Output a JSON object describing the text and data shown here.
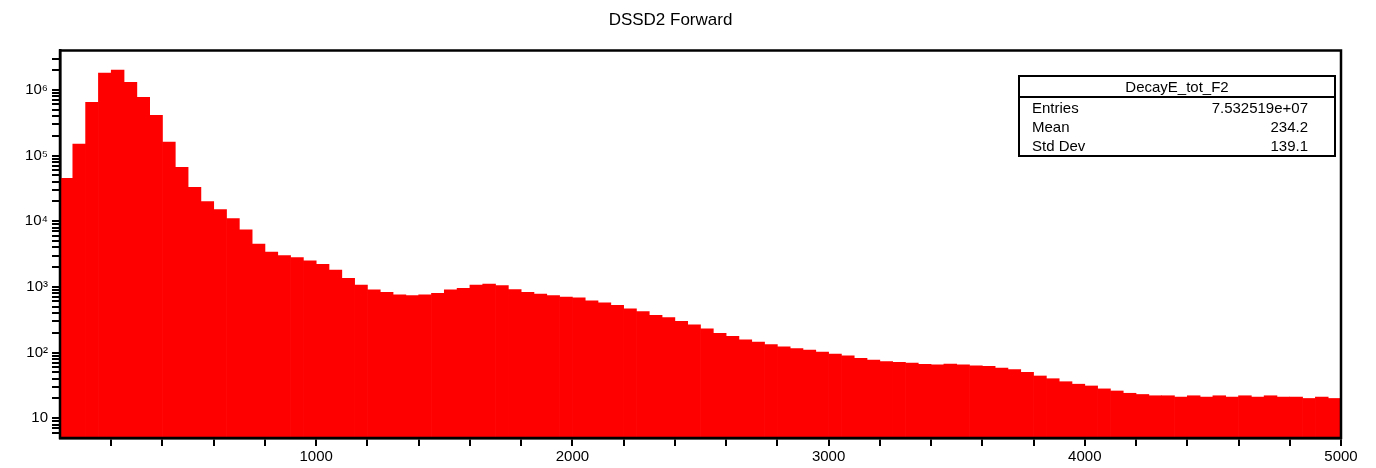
{
  "chart_data": {
    "type": "histogram",
    "title": "DSSD2 Forward",
    "bins": [
      0,
      50,
      100,
      150,
      200,
      250,
      300,
      350,
      400,
      450,
      500,
      550,
      600,
      650,
      700,
      750,
      800,
      850,
      900,
      950,
      1000,
      1050,
      1100,
      1150,
      1200,
      1250,
      1300,
      1350,
      1400,
      1450,
      1500,
      1550,
      1600,
      1650,
      1700,
      1750,
      1800,
      1850,
      1900,
      1950,
      2000,
      2050,
      2100,
      2150,
      2200,
      2250,
      2300,
      2350,
      2400,
      2450,
      2500,
      2550,
      2600,
      2650,
      2700,
      2750,
      2800,
      2850,
      2900,
      2950,
      3000,
      3050,
      3100,
      3150,
      3200,
      3250,
      3300,
      3350,
      3400,
      3450,
      3500,
      3550,
      3600,
      3650,
      3700,
      3750,
      3800,
      3850,
      3900,
      3950,
      4000,
      4050,
      4100,
      4150,
      4200,
      4250,
      4300,
      4350,
      4400,
      4450,
      4500,
      4550,
      4600,
      4650,
      4700,
      4750,
      4800,
      4850,
      4900,
      4950,
      5000
    ],
    "values": [
      45000,
      150000,
      650000,
      1800000,
      2000000,
      1300000,
      770000,
      410000,
      160000,
      66000,
      33000,
      20000,
      15000,
      11000,
      7400,
      4500,
      3400,
      3000,
      2800,
      2500,
      2200,
      1800,
      1350,
      1070,
      900,
      830,
      760,
      740,
      760,
      800,
      900,
      950,
      1070,
      1100,
      1050,
      910,
      830,
      780,
      740,
      700,
      680,
      615,
      570,
      525,
      465,
      420,
      370,
      340,
      300,
      265,
      230,
      196,
      176,
      157,
      145,
      132,
      122,
      115,
      109,
      102,
      95,
      89,
      82,
      77,
      73,
      71,
      69,
      66,
      65,
      67,
      65,
      63,
      62,
      58,
      55,
      50,
      44,
      40,
      36,
      33,
      31,
      28,
      26,
      24,
      23,
      22,
      22,
      21,
      22,
      21,
      22,
      21,
      22,
      21,
      22,
      21,
      21,
      20,
      21,
      20
    ],
    "color": "#ff0000",
    "log": "y",
    "xlim": [
      0,
      5000
    ],
    "xticks": [
      {
        "value": 200,
        "label": null
      },
      {
        "value": 400,
        "label": null
      },
      {
        "value": 600,
        "label": null
      },
      {
        "value": 800,
        "label": null
      },
      1000,
      {
        "value": 1200,
        "label": null
      },
      {
        "value": 1400,
        "label": null
      },
      {
        "value": 1600,
        "label": null
      },
      {
        "value": 1800,
        "label": null
      },
      2000,
      {
        "value": 2200,
        "label": null
      },
      {
        "value": 2400,
        "label": null
      },
      {
        "value": 2600,
        "label": null
      },
      {
        "value": 2800,
        "label": null
      },
      3000,
      {
        "value": 3200,
        "label": null
      },
      {
        "value": 3400,
        "label": null
      },
      {
        "value": 3600,
        "label": null
      },
      {
        "value": 3800,
        "label": null
      },
      4000,
      {
        "value": 4200,
        "label": null
      },
      {
        "value": 4400,
        "label": null
      },
      {
        "value": 4600,
        "label": null
      },
      {
        "value": 4800,
        "label": null
      },
      5000
    ],
    "ylim": [
      5,
      4000000
    ],
    "yticks": [
      {
        "value": 6,
        "label": null
      },
      {
        "value": 7,
        "label": null
      },
      {
        "value": 8,
        "label": null
      },
      {
        "value": 9,
        "label": null
      },
      10,
      {
        "value": 20,
        "label": null
      },
      {
        "value": 30,
        "label": null
      },
      {
        "value": 40,
        "label": null
      },
      {
        "value": 50,
        "label": null
      },
      {
        "value": 60,
        "label": null
      },
      {
        "value": 70,
        "label": null
      },
      {
        "value": 80,
        "label": null
      },
      {
        "value": 90,
        "label": null
      },
      {
        "value": 100,
        "label": "10²"
      },
      {
        "value": 200,
        "label": null
      },
      {
        "value": 300,
        "label": null
      },
      {
        "value": 400,
        "label": null
      },
      {
        "value": 500,
        "label": null
      },
      {
        "value": 600,
        "label": null
      },
      {
        "value": 700,
        "label": null
      },
      {
        "value": 800,
        "label": null
      },
      {
        "value": 900,
        "label": null
      },
      {
        "value": 1000,
        "label": "10³"
      },
      {
        "value": 2000,
        "label": null
      },
      {
        "value": 3000,
        "label": null
      },
      {
        "value": 4000,
        "label": null
      },
      {
        "value": 5000,
        "label": null
      },
      {
        "value": 6000,
        "label": null
      },
      {
        "value": 7000,
        "label": null
      },
      {
        "value": 8000,
        "label": null
      },
      {
        "value": 9000,
        "label": null
      },
      {
        "value": 10000,
        "label": "10⁴"
      },
      {
        "value": 20000,
        "label": null
      },
      {
        "value": 30000,
        "label": null
      },
      {
        "value": 40000,
        "label": null
      },
      {
        "value": 50000,
        "label": null
      },
      {
        "value": 60000,
        "label": null
      },
      {
        "value": 70000,
        "label": null
      },
      {
        "value": 80000,
        "label": null
      },
      {
        "value": 90000,
        "label": null
      },
      {
        "value": 100000,
        "label": "10⁵"
      },
      {
        "value": 200000,
        "label": null
      },
      {
        "value": 300000,
        "label": null
      },
      {
        "value": 400000,
        "label": null
      },
      {
        "value": 500000,
        "label": null
      },
      {
        "value": 600000,
        "label": null
      },
      {
        "value": 700000,
        "label": null
      },
      {
        "value": 800000,
        "label": null
      },
      {
        "value": 900000,
        "label": null
      },
      {
        "value": 1000000,
        "label": "10⁶"
      },
      {
        "value": 2000000,
        "label": null
      },
      {
        "value": 3000000,
        "label": null
      }
    ],
    "annotations": [
      "DecayE_tot_F2",
      "Entries",
      "7.532519e+07",
      "Mean",
      "234.2",
      "Std Dev",
      "139.1"
    ]
  }
}
